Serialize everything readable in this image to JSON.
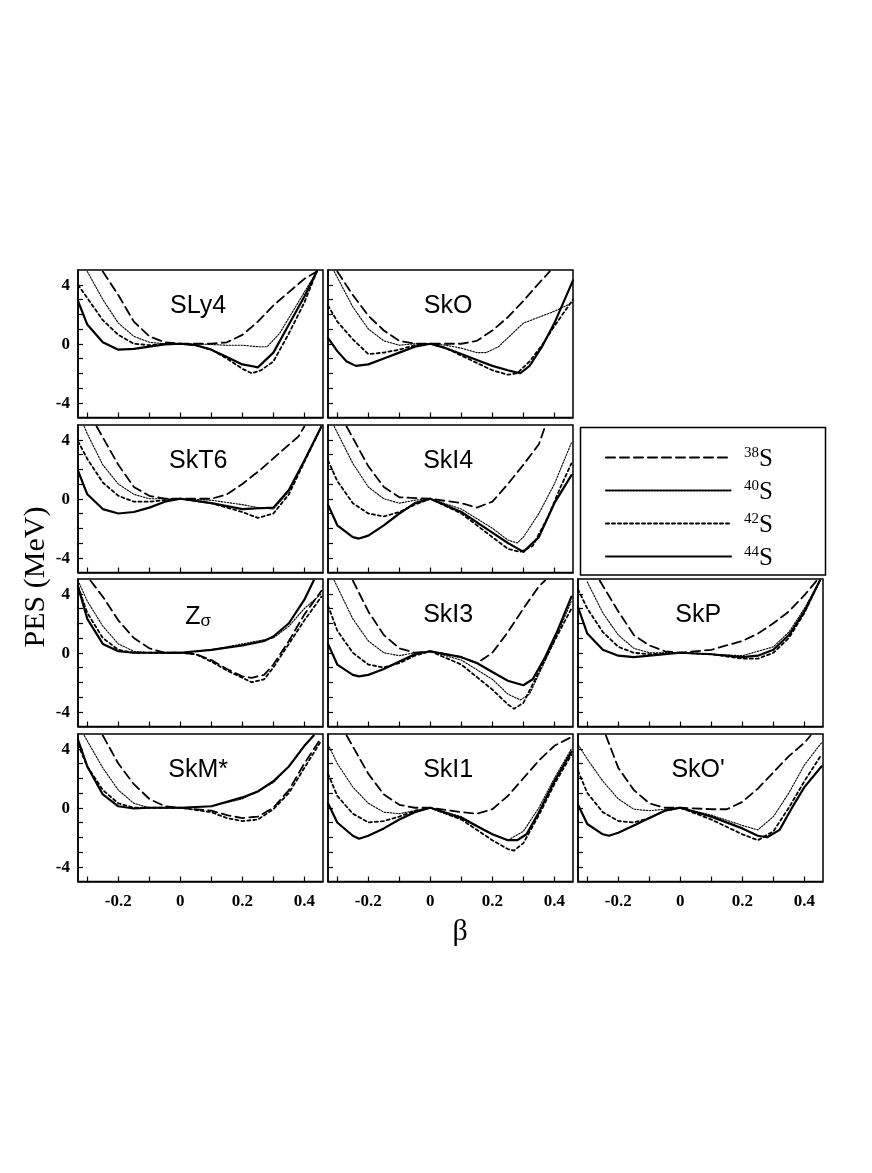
{
  "chart_data": [
    {
      "type": "line",
      "title": "SLy4",
      "xlim": [
        -0.33,
        0.46
      ],
      "ylim": [
        -5,
        5
      ],
      "tick_labels": "y",
      "xticks": [
        {
          "value": -0.3,
          "label": null
        },
        -0.2,
        {
          "value": -0.1,
          "label": null
        },
        0,
        {
          "value": 0.1,
          "label": null
        },
        0.2,
        {
          "value": 0.3,
          "label": null
        },
        0.4
      ],
      "yticks": [
        -4,
        {
          "value": -3,
          "label": null
        },
        {
          "value": -2,
          "label": null
        },
        {
          "value": -1,
          "label": null
        },
        0,
        {
          "value": 1,
          "label": null
        },
        {
          "value": 2,
          "label": null
        },
        {
          "value": 3,
          "label": null
        },
        4
      ],
      "series": [
        {
          "color": "#000000",
          "line_style": "dashed",
          "x": [
            -0.25,
            -0.2,
            -0.15,
            -0.1,
            -0.05,
            0,
            0.05,
            0.1,
            0.15,
            0.2,
            0.25,
            0.3,
            0.35,
            0.4,
            0.44
          ],
          "values": [
            4.9,
            3.3,
            1.5,
            0.5,
            0.1,
            0,
            0,
            0,
            0.1,
            0.6,
            1.5,
            2.6,
            3.5,
            4.4,
            4.9
          ]
        },
        {
          "color": "#000000",
          "line_style": "dotted",
          "x": [
            -0.3,
            -0.25,
            -0.2,
            -0.15,
            -0.1,
            -0.05,
            0,
            0.05,
            0.1,
            0.15,
            0.2,
            0.25,
            0.28,
            0.32,
            0.36,
            0.4,
            0.44
          ],
          "values": [
            4.9,
            3.0,
            1.4,
            0.5,
            0.1,
            0,
            0,
            0,
            -0.05,
            -0.1,
            -0.1,
            -0.2,
            -0.2,
            0.7,
            2.1,
            3.5,
            4.9
          ]
        },
        {
          "color": "#000000",
          "line_style": "dashed",
          "x": [
            -0.33,
            -0.3,
            -0.25,
            -0.2,
            -0.15,
            -0.1,
            -0.05,
            0,
            0.05,
            0.1,
            0.15,
            0.2,
            0.23,
            0.26,
            0.3,
            0.35,
            0.4,
            0.44
          ],
          "values": [
            4.0,
            3.1,
            1.6,
            0.6,
            0,
            -0.1,
            0,
            0,
            -0.1,
            -0.4,
            -1.0,
            -1.7,
            -2.0,
            -1.8,
            -1.2,
            0.7,
            2.8,
            4.9
          ]
        },
        {
          "color": "#000000",
          "line_style": "solid",
          "x": [
            -0.33,
            -0.3,
            -0.25,
            -0.2,
            -0.15,
            -0.1,
            -0.05,
            0,
            0.05,
            0.1,
            0.15,
            0.2,
            0.25,
            0.3,
            0.35,
            0.4,
            0.44
          ],
          "values": [
            2.9,
            1.3,
            0.1,
            -0.4,
            -0.35,
            -0.2,
            -0.05,
            0,
            -0.1,
            -0.4,
            -0.9,
            -1.4,
            -1.6,
            -0.6,
            1.3,
            3.2,
            4.9
          ]
        }
      ]
    },
    {
      "type": "line",
      "title": "SkO",
      "xlim": [
        -0.33,
        0.46
      ],
      "ylim": [
        -5,
        5
      ],
      "tick_labels": false,
      "xticks": [
        {
          "value": -0.3,
          "label": null
        },
        -0.2,
        {
          "value": -0.1,
          "label": null
        },
        0,
        {
          "value": 0.1,
          "label": null
        },
        0.2,
        {
          "value": 0.3,
          "label": null
        },
        0.4
      ],
      "yticks": [
        -4,
        {
          "value": -3,
          "label": null
        },
        {
          "value": -2,
          "label": null
        },
        {
          "value": -1,
          "label": null
        },
        0,
        {
          "value": 1,
          "label": null
        },
        {
          "value": 2,
          "label": null
        },
        {
          "value": 3,
          "label": null
        },
        4
      ],
      "series": [
        {
          "color": "#000000",
          "line_style": "dashed",
          "x": [
            -0.3,
            -0.25,
            -0.2,
            -0.15,
            -0.1,
            -0.05,
            0,
            0.05,
            0.1,
            0.15,
            0.2,
            0.25,
            0.3,
            0.35,
            0.385
          ],
          "values": [
            4.9,
            3.3,
            1.9,
            0.9,
            0.2,
            0,
            0,
            0,
            0,
            0.2,
            0.9,
            1.8,
            2.9,
            4.1,
            4.9
          ]
        },
        {
          "color": "#000000",
          "line_style": "dotted",
          "x": [
            -0.31,
            -0.25,
            -0.2,
            -0.15,
            -0.1,
            -0.05,
            0,
            0.05,
            0.1,
            0.15,
            0.18,
            0.22,
            0.26,
            0.3,
            0.35,
            0.4,
            0.46
          ],
          "values": [
            4.9,
            2.5,
            1.0,
            0.2,
            -0.1,
            0,
            0,
            -0.1,
            -0.3,
            -0.6,
            -0.6,
            -0.2,
            0.6,
            1.4,
            1.8,
            2.2,
            2.8
          ]
        },
        {
          "color": "#000000",
          "line_style": "dashed",
          "x": [
            -0.33,
            -0.3,
            -0.25,
            -0.2,
            -0.15,
            -0.1,
            -0.05,
            0,
            0.05,
            0.1,
            0.15,
            0.2,
            0.25,
            0.28,
            0.32,
            0.36,
            0.4,
            0.46
          ],
          "values": [
            2.6,
            1.5,
            0.3,
            -0.7,
            -0.6,
            -0.4,
            -0.1,
            0,
            -0.3,
            -0.8,
            -1.3,
            -1.8,
            -2.1,
            -2.0,
            -1.2,
            -0.1,
            1.2,
            3.0
          ]
        },
        {
          "color": "#000000",
          "line_style": "solid",
          "x": [
            -0.33,
            -0.3,
            -0.27,
            -0.24,
            -0.2,
            -0.15,
            -0.1,
            -0.05,
            0,
            0.05,
            0.1,
            0.15,
            0.2,
            0.25,
            0.29,
            0.32,
            0.36,
            0.4,
            0.46
          ],
          "values": [
            0.4,
            -0.5,
            -1.2,
            -1.5,
            -1.4,
            -1.0,
            -0.6,
            -0.2,
            0,
            -0.3,
            -0.7,
            -1.1,
            -1.5,
            -1.8,
            -2.0,
            -1.5,
            -0.2,
            1.4,
            4.3
          ]
        }
      ]
    },
    {
      "type": "line",
      "title": "SkT6",
      "ylabel": "PES (MeV)",
      "xlim": [
        -0.33,
        0.46
      ],
      "ylim": [
        -5,
        5
      ],
      "tick_labels": "y",
      "xticks": [
        {
          "value": -0.3,
          "label": null
        },
        -0.2,
        {
          "value": -0.1,
          "label": null
        },
        0,
        {
          "value": 0.1,
          "label": null
        },
        0.2,
        {
          "value": 0.3,
          "label": null
        },
        0.4
      ],
      "yticks": [
        -4,
        {
          "value": -3,
          "label": null
        },
        {
          "value": -2,
          "label": null
        },
        {
          "value": -1,
          "label": null
        },
        0,
        {
          "value": 1,
          "label": null
        },
        {
          "value": 2,
          "label": null
        },
        {
          "value": 3,
          "label": null
        },
        4
      ],
      "series": [
        {
          "color": "#000000",
          "line_style": "dashed",
          "x": [
            -0.27,
            -0.2,
            -0.15,
            -0.1,
            -0.05,
            0,
            0.05,
            0.1,
            0.15,
            0.2,
            0.26,
            0.33,
            0.38,
            0.4
          ],
          "values": [
            4.9,
            2.3,
            0.8,
            0.2,
            0,
            0,
            0,
            0,
            0.3,
            1.0,
            2.0,
            3.3,
            4.2,
            4.9
          ]
        },
        {
          "color": "#000000",
          "line_style": "dotted",
          "x": [
            -0.31,
            -0.3,
            -0.25,
            -0.2,
            -0.15,
            -0.1,
            0,
            0.1,
            0.2,
            0.25,
            0.3,
            0.35,
            0.4,
            0.455
          ],
          "values": [
            4.9,
            4.4,
            2.3,
            1.0,
            0.3,
            0,
            0,
            -0.1,
            -0.4,
            -0.6,
            -0.7,
            0.5,
            2.6,
            4.9
          ]
        },
        {
          "color": "#000000",
          "line_style": "dashed",
          "x": [
            -0.33,
            -0.3,
            -0.25,
            -0.2,
            -0.15,
            -0.1,
            0,
            0.1,
            0.2,
            0.25,
            0.3,
            0.35,
            0.4,
            0.455
          ],
          "values": [
            3.9,
            2.7,
            1.1,
            0.2,
            -0.2,
            -0.2,
            0,
            -0.3,
            -0.9,
            -1.3,
            -1.0,
            0.3,
            2.5,
            4.9
          ]
        },
        {
          "color": "#000000",
          "line_style": "solid",
          "x": [
            -0.33,
            -0.3,
            -0.25,
            -0.2,
            -0.15,
            -0.1,
            -0.05,
            0,
            0.1,
            0.2,
            0.3,
            0.35,
            0.4,
            0.455
          ],
          "values": [
            1.9,
            0.3,
            -0.7,
            -1.0,
            -0.9,
            -0.6,
            -0.2,
            0,
            -0.3,
            -0.7,
            -0.6,
            0.6,
            2.6,
            4.9
          ]
        }
      ]
    },
    {
      "type": "line",
      "title": "SkI4",
      "legend": "right",
      "xlim": [
        -0.33,
        0.46
      ],
      "ylim": [
        -5,
        5
      ],
      "tick_labels": false,
      "xticks": [
        {
          "value": -0.3,
          "label": null
        },
        -0.2,
        {
          "value": -0.1,
          "label": null
        },
        0,
        {
          "value": 0.1,
          "label": null
        },
        0.2,
        {
          "value": 0.3,
          "label": null
        },
        0.4
      ],
      "yticks": [
        -4,
        {
          "value": -3,
          "label": null
        },
        {
          "value": -2,
          "label": null
        },
        {
          "value": -1,
          "label": null
        },
        0,
        {
          "value": 1,
          "label": null
        },
        {
          "value": 2,
          "label": null
        },
        {
          "value": 3,
          "label": null
        },
        4
      ],
      "series": [
        {
          "name": "$^{38}$S",
          "color": "#000000",
          "line_style": "dashed",
          "x": [
            -0.27,
            -0.2,
            -0.15,
            -0.1,
            0,
            0.1,
            0.15,
            0.2,
            0.25,
            0.3,
            0.35,
            0.37
          ],
          "values": [
            4.9,
            2.2,
            0.8,
            0.1,
            0,
            -0.3,
            -0.6,
            -0.2,
            1.0,
            2.3,
            3.7,
            4.9
          ]
        },
        {
          "name": "$^{40}$S",
          "color": "#000000",
          "line_style": "dotted",
          "x": [
            -0.31,
            -0.25,
            -0.2,
            -0.15,
            -0.1,
            -0.05,
            0,
            0.1,
            0.2,
            0.25,
            0.28,
            0.3,
            0.35,
            0.4,
            0.455
          ],
          "values": [
            4.9,
            2.4,
            0.8,
            0,
            -0.3,
            -0.1,
            0,
            -0.7,
            -2.0,
            -2.8,
            -3.0,
            -2.6,
            -1.0,
            1.0,
            3.8
          ]
        },
        {
          "name": "$^{42}$S",
          "color": "#000000",
          "line_style": "dashed",
          "x": [
            -0.33,
            -0.3,
            -0.25,
            -0.2,
            -0.15,
            -0.1,
            -0.05,
            0,
            0.1,
            0.2,
            0.25,
            0.29,
            0.33,
            0.38,
            0.42,
            0.455
          ],
          "values": [
            2.6,
            1.2,
            -0.3,
            -1.0,
            -1.2,
            -0.9,
            -0.4,
            0,
            -1.0,
            -2.6,
            -3.4,
            -3.6,
            -3.2,
            -1.2,
            0.8,
            2.4
          ]
        },
        {
          "name": "$^{44}$S",
          "color": "#000000",
          "line_style": "solid",
          "x": [
            -0.33,
            -0.3,
            -0.25,
            -0.23,
            -0.2,
            -0.15,
            -0.1,
            -0.05,
            0,
            0.1,
            0.2,
            0.25,
            0.3,
            0.35,
            0.4,
            0.455
          ],
          "values": [
            -0.4,
            -1.8,
            -2.6,
            -2.7,
            -2.5,
            -1.8,
            -1.0,
            -0.3,
            0,
            -0.9,
            -2.3,
            -3.0,
            -3.6,
            -2.6,
            -0.3,
            1.6
          ]
        }
      ]
    },
    {
      "type": "line",
      "title": "Z$_{σ}$",
      "xlim": [
        -0.33,
        0.46
      ],
      "ylim": [
        -5,
        5
      ],
      "tick_labels": "y",
      "xticks": [
        {
          "value": -0.3,
          "label": null
        },
        -0.2,
        {
          "value": -0.1,
          "label": null
        },
        0,
        {
          "value": 0.1,
          "label": null
        },
        0.2,
        {
          "value": 0.3,
          "label": null
        },
        0.4
      ],
      "yticks": [
        -4,
        {
          "value": -3,
          "label": null
        },
        {
          "value": -2,
          "label": null
        },
        {
          "value": -1,
          "label": null
        },
        0,
        {
          "value": 1,
          "label": null
        },
        {
          "value": 2,
          "label": null
        },
        {
          "value": 3,
          "label": null
        },
        4
      ],
      "series": [
        {
          "color": "#000000",
          "line_style": "dashed",
          "x": [
            -0.29,
            -0.25,
            -0.2,
            -0.15,
            -0.1,
            -0.05,
            0,
            0.05,
            0.1,
            0.15,
            0.2,
            0.23,
            0.27,
            0.3,
            0.35,
            0.4,
            0.455
          ],
          "values": [
            4.9,
            3.8,
            2.2,
            1.0,
            0.3,
            0,
            0,
            -0.1,
            -0.5,
            -1.1,
            -1.6,
            -1.7,
            -1.5,
            -0.8,
            0.8,
            2.6,
            4.2
          ]
        },
        {
          "color": "#000000",
          "line_style": "dotted",
          "x": [
            -0.33,
            -0.3,
            -0.25,
            -0.2,
            -0.15,
            -0.1,
            0,
            0.1,
            0.2,
            0.3,
            0.35,
            0.4,
            0.455
          ],
          "values": [
            4.9,
            3.5,
            1.8,
            0.6,
            0.1,
            0,
            0,
            0.2,
            0.6,
            1.0,
            1.8,
            3.0,
            4.0
          ]
        },
        {
          "color": "#000000",
          "line_style": "dashed",
          "x": [
            -0.33,
            -0.3,
            -0.25,
            -0.2,
            -0.15,
            0,
            0.05,
            0.1,
            0.15,
            0.2,
            0.23,
            0.27,
            0.3,
            0.35,
            0.4,
            0.455
          ],
          "values": [
            4.5,
            2.7,
            1.0,
            0.2,
            0,
            0,
            -0.1,
            -0.6,
            -1.2,
            -1.7,
            -2.0,
            -1.8,
            -1.0,
            0.6,
            2.2,
            3.8
          ]
        },
        {
          "color": "#000000",
          "line_style": "solid",
          "x": [
            -0.33,
            -0.3,
            -0.25,
            -0.2,
            -0.15,
            -0.1,
            0,
            0.1,
            0.2,
            0.27,
            0.3,
            0.35,
            0.4,
            0.43
          ],
          "values": [
            4.5,
            2.3,
            0.6,
            0.1,
            0,
            0,
            0,
            0.2,
            0.5,
            0.8,
            1.1,
            2.0,
            3.6,
            4.9
          ]
        }
      ]
    },
    {
      "type": "line",
      "title": "SkI3",
      "xlim": [
        -0.33,
        0.46
      ],
      "ylim": [
        -5,
        5
      ],
      "tick_labels": false,
      "xticks": [
        {
          "value": -0.3,
          "label": null
        },
        -0.2,
        {
          "value": -0.1,
          "label": null
        },
        0,
        {
          "value": 0.1,
          "label": null
        },
        0.2,
        {
          "value": 0.3,
          "label": null
        },
        0.4
      ],
      "yticks": [
        -4,
        {
          "value": -3,
          "label": null
        },
        {
          "value": -2,
          "label": null
        },
        {
          "value": -1,
          "label": null
        },
        0,
        {
          "value": 1,
          "label": null
        },
        {
          "value": 2,
          "label": null
        },
        {
          "value": 3,
          "label": null
        },
        4
      ],
      "series": [
        {
          "color": "#000000",
          "line_style": "dashed",
          "x": [
            -0.25,
            -0.2,
            -0.15,
            -0.1,
            -0.05,
            0,
            0.1,
            0.15,
            0.2,
            0.25,
            0.3,
            0.35,
            0.37
          ],
          "values": [
            4.9,
            2.8,
            1.2,
            0.3,
            0,
            0.1,
            -0.3,
            -0.7,
            0,
            1.4,
            3.0,
            4.5,
            4.9
          ]
        },
        {
          "color": "#000000",
          "line_style": "dotted",
          "x": [
            -0.31,
            -0.25,
            -0.2,
            -0.15,
            -0.1,
            -0.05,
            0,
            0.1,
            0.2,
            0.25,
            0.29,
            0.32,
            0.36,
            0.4,
            0.455
          ],
          "values": [
            4.9,
            2.3,
            0.8,
            0,
            -0.2,
            0,
            0.1,
            -0.5,
            -1.8,
            -2.8,
            -3.2,
            -2.8,
            -1.0,
            0.8,
            3.5
          ]
        },
        {
          "color": "#000000",
          "line_style": "dashed",
          "x": [
            -0.33,
            -0.3,
            -0.25,
            -0.2,
            -0.15,
            -0.1,
            -0.05,
            0,
            0.1,
            0.2,
            0.25,
            0.27,
            0.3,
            0.35,
            0.4,
            0.455
          ],
          "values": [
            3.2,
            1.5,
            0,
            -0.8,
            -1.0,
            -0.7,
            -0.2,
            0.1,
            -0.8,
            -2.5,
            -3.5,
            -3.8,
            -3.4,
            -1.3,
            0.8,
            3.0
          ]
        },
        {
          "color": "#000000",
          "line_style": "solid",
          "x": [
            -0.33,
            -0.3,
            -0.25,
            -0.23,
            -0.2,
            -0.15,
            -0.1,
            -0.05,
            0,
            0.1,
            0.15,
            0.2,
            0.25,
            0.3,
            0.33,
            0.37,
            0.41,
            0.455
          ],
          "values": [
            0.6,
            -0.8,
            -1.5,
            -1.6,
            -1.5,
            -1.1,
            -0.6,
            -0.1,
            0.1,
            -0.3,
            -0.7,
            -1.3,
            -1.9,
            -2.2,
            -1.8,
            -0.3,
            1.5,
            3.8
          ]
        }
      ]
    },
    {
      "type": "line",
      "title": "SkP",
      "xlim": [
        -0.33,
        0.46
      ],
      "ylim": [
        -5,
        5
      ],
      "tick_labels": false,
      "xticks": [
        {
          "value": -0.3,
          "label": null
        },
        -0.2,
        {
          "value": -0.1,
          "label": null
        },
        0,
        {
          "value": 0.1,
          "label": null
        },
        0.2,
        {
          "value": 0.3,
          "label": null
        },
        0.4
      ],
      "yticks": [
        -4,
        {
          "value": -3,
          "label": null
        },
        {
          "value": -2,
          "label": null
        },
        {
          "value": -1,
          "label": null
        },
        0,
        {
          "value": 1,
          "label": null
        },
        {
          "value": 2,
          "label": null
        },
        {
          "value": 3,
          "label": null
        },
        4
      ],
      "series": [
        {
          "color": "#000000",
          "line_style": "dashed",
          "x": [
            -0.26,
            -0.2,
            -0.15,
            -0.1,
            -0.05,
            0,
            0.1,
            0.2,
            0.25,
            0.3,
            0.35,
            0.4,
            0.44
          ],
          "values": [
            4.9,
            2.8,
            1.2,
            0.5,
            0.1,
            0,
            0.2,
            0.8,
            1.3,
            2.0,
            2.8,
            3.9,
            4.9
          ]
        },
        {
          "color": "#000000",
          "line_style": "dotted",
          "x": [
            -0.3,
            -0.25,
            -0.2,
            -0.15,
            -0.1,
            0,
            0.1,
            0.2,
            0.3,
            0.35,
            0.4,
            0.45
          ],
          "values": [
            4.8,
            2.7,
            1.2,
            0.3,
            0,
            0,
            -0.1,
            -0.2,
            0.4,
            1.4,
            3.0,
            4.9
          ]
        },
        {
          "color": "#000000",
          "line_style": "dashed",
          "x": [
            -0.33,
            -0.3,
            -0.25,
            -0.2,
            -0.15,
            -0.1,
            0,
            0.1,
            0.2,
            0.25,
            0.3,
            0.35,
            0.4,
            0.45
          ],
          "values": [
            4.3,
            3.0,
            1.4,
            0.4,
            0,
            -0.1,
            0,
            -0.1,
            -0.4,
            -0.4,
            0,
            1.0,
            2.7,
            4.9
          ]
        },
        {
          "color": "#000000",
          "line_style": "solid",
          "x": [
            -0.33,
            -0.3,
            -0.25,
            -0.2,
            -0.15,
            -0.1,
            0,
            0.1,
            0.2,
            0.25,
            0.3,
            0.35,
            0.4,
            0.45
          ],
          "values": [
            3.1,
            1.3,
            0.2,
            -0.2,
            -0.3,
            -0.2,
            0,
            -0.1,
            -0.3,
            -0.2,
            0.2,
            1.2,
            2.8,
            4.9
          ]
        }
      ]
    },
    {
      "type": "line",
      "title": "SkM*",
      "xlim": [
        -0.33,
        0.46
      ],
      "ylim": [
        -5,
        5
      ],
      "xticks": [
        {
          "value": -0.3,
          "label": null
        },
        -0.2,
        {
          "value": -0.1,
          "label": null
        },
        0,
        {
          "value": 0.1,
          "label": null
        },
        0.2,
        {
          "value": 0.3,
          "label": null
        },
        0.4
      ],
      "yticks": [
        -4,
        {
          "value": -3,
          "label": null
        },
        {
          "value": -2,
          "label": null
        },
        {
          "value": -1,
          "label": null
        },
        0,
        {
          "value": 1,
          "label": null
        },
        {
          "value": 2,
          "label": null
        },
        {
          "value": 3,
          "label": null
        },
        4
      ],
      "series": [
        {
          "color": "#000000",
          "line_style": "dashed",
          "x": [
            -0.25,
            -0.2,
            -0.15,
            -0.1,
            -0.05,
            0,
            0.1,
            0.15,
            0.2,
            0.25,
            0.3,
            0.35,
            0.4,
            0.45
          ],
          "values": [
            4.9,
            3.0,
            1.6,
            0.6,
            0.1,
            0,
            -0.2,
            -0.5,
            -0.7,
            -0.6,
            0,
            1.2,
            3.0,
            4.6
          ]
        },
        {
          "color": "#000000",
          "line_style": "dotted",
          "x": [
            -0.31,
            -0.25,
            -0.2,
            -0.15,
            -0.1,
            0,
            0.1,
            0.2,
            0.3,
            0.35,
            0.4,
            0.43
          ],
          "values": [
            4.9,
            2.7,
            1.2,
            0.3,
            0,
            0,
            0.1,
            0.6,
            1.7,
            2.8,
            4.2,
            4.9
          ]
        },
        {
          "color": "#000000",
          "line_style": "dashed",
          "x": [
            -0.33,
            -0.3,
            -0.25,
            -0.2,
            -0.15,
            -0.1,
            0,
            0.1,
            0.15,
            0.2,
            0.25,
            0.3,
            0.35,
            0.4,
            0.45
          ],
          "values": [
            4.3,
            2.8,
            1.2,
            0.3,
            0,
            0,
            0,
            -0.3,
            -0.7,
            -0.9,
            -0.8,
            -0.1,
            1.0,
            2.7,
            4.4
          ]
        },
        {
          "color": "#000000",
          "line_style": "solid",
          "x": [
            -0.33,
            -0.3,
            -0.25,
            -0.2,
            -0.15,
            -0.1,
            0,
            0.1,
            0.2,
            0.25,
            0.3,
            0.35,
            0.4,
            0.43
          ],
          "values": [
            4.6,
            2.8,
            0.9,
            0.1,
            -0.05,
            0,
            0,
            0.1,
            0.7,
            1.1,
            1.8,
            2.8,
            4.2,
            4.9
          ]
        }
      ]
    },
    {
      "type": "line",
      "title": "SkI1",
      "xlabel": "β",
      "xlim": [
        -0.33,
        0.46
      ],
      "ylim": [
        -5,
        5
      ],
      "tick_labels": "x",
      "xticks": [
        {
          "value": -0.3,
          "label": null
        },
        -0.2,
        {
          "value": -0.1,
          "label": null
        },
        0,
        {
          "value": 0.1,
          "label": null
        },
        0.2,
        {
          "value": 0.3,
          "label": null
        },
        0.4
      ],
      "yticks": [
        -4,
        {
          "value": -3,
          "label": null
        },
        {
          "value": -2,
          "label": null
        },
        {
          "value": -1,
          "label": null
        },
        0,
        {
          "value": 1,
          "label": null
        },
        {
          "value": 2,
          "label": null
        },
        {
          "value": 3,
          "label": null
        },
        4
      ],
      "series": [
        {
          "color": "#000000",
          "line_style": "dashed",
          "x": [
            -0.27,
            -0.2,
            -0.15,
            -0.1,
            -0.05,
            0,
            0.1,
            0.15,
            0.2,
            0.25,
            0.3,
            0.35,
            0.4,
            0.455
          ],
          "values": [
            4.9,
            2.3,
            0.9,
            0.2,
            0,
            0,
            -0.3,
            -0.4,
            -0.1,
            0.8,
            2.0,
            3.2,
            4.2,
            4.8
          ]
        },
        {
          "color": "#000000",
          "line_style": "dotted",
          "x": [
            -0.33,
            -0.3,
            -0.25,
            -0.2,
            -0.15,
            -0.1,
            -0.05,
            0,
            0.1,
            0.2,
            0.25,
            0.3,
            0.35,
            0.4,
            0.455
          ],
          "values": [
            4.3,
            3.0,
            1.4,
            0.3,
            -0.3,
            -0.4,
            -0.2,
            0,
            -0.6,
            -1.8,
            -2.2,
            -1.6,
            0,
            2.0,
            4.0
          ]
        },
        {
          "color": "#000000",
          "line_style": "dashed",
          "x": [
            -0.33,
            -0.3,
            -0.25,
            -0.2,
            -0.15,
            -0.1,
            -0.05,
            0,
            0.1,
            0.2,
            0.25,
            0.27,
            0.3,
            0.35,
            0.4,
            0.455
          ],
          "values": [
            2.3,
            0.8,
            -0.4,
            -1.0,
            -0.9,
            -0.6,
            -0.2,
            0,
            -0.8,
            -2.2,
            -2.8,
            -2.9,
            -2.4,
            -0.5,
            1.6,
            3.6
          ]
        },
        {
          "color": "#000000",
          "line_style": "solid",
          "x": [
            -0.33,
            -0.3,
            -0.25,
            -0.23,
            -0.2,
            -0.15,
            -0.1,
            -0.05,
            0,
            0.1,
            0.2,
            0.25,
            0.28,
            0.31,
            0.35,
            0.4,
            0.455
          ],
          "values": [
            0.3,
            -1.0,
            -1.9,
            -2.1,
            -1.9,
            -1.4,
            -0.8,
            -0.3,
            0,
            -0.7,
            -1.8,
            -2.2,
            -2.2,
            -1.8,
            -0.3,
            1.8,
            3.8
          ]
        }
      ]
    },
    {
      "type": "line",
      "title": "SkO'",
      "xlim": [
        -0.33,
        0.46
      ],
      "ylim": [
        -5,
        5
      ],
      "tick_labels": "x",
      "xticks": [
        {
          "value": -0.3,
          "label": null
        },
        -0.2,
        {
          "value": -0.1,
          "label": null
        },
        0,
        {
          "value": 0.1,
          "label": null
        },
        0.2,
        {
          "value": 0.3,
          "label": null
        },
        0.4
      ],
      "yticks": [
        -4,
        {
          "value": -3,
          "label": null
        },
        {
          "value": -2,
          "label": null
        },
        {
          "value": -1,
          "label": null
        },
        0,
        {
          "value": 1,
          "label": null
        },
        {
          "value": 2,
          "label": null
        },
        {
          "value": 3,
          "label": null
        },
        4
      ],
      "series": [
        {
          "color": "#000000",
          "line_style": "dashed",
          "x": [
            -0.24,
            -0.2,
            -0.15,
            -0.1,
            -0.05,
            0,
            0.1,
            0.15,
            0.2,
            0.25,
            0.3,
            0.35,
            0.4,
            0.42
          ],
          "values": [
            4.9,
            2.7,
            1.2,
            0.3,
            0,
            0,
            -0.1,
            -0.1,
            0.4,
            1.3,
            2.4,
            3.5,
            4.4,
            4.9
          ]
        },
        {
          "color": "#000000",
          "line_style": "dotted",
          "x": [
            -0.33,
            -0.3,
            -0.25,
            -0.2,
            -0.15,
            -0.1,
            -0.05,
            0,
            0.1,
            0.2,
            0.25,
            0.3,
            0.35,
            0.4,
            0.455
          ],
          "values": [
            4.3,
            3.3,
            1.8,
            0.6,
            -0.1,
            -0.2,
            -0.1,
            0,
            -0.5,
            -1.2,
            -1.5,
            -0.6,
            1.0,
            2.9,
            4.4
          ]
        },
        {
          "color": "#000000",
          "line_style": "dashed",
          "x": [
            -0.33,
            -0.3,
            -0.25,
            -0.2,
            -0.15,
            -0.1,
            -0.05,
            0,
            0.1,
            0.2,
            0.25,
            0.3,
            0.35,
            0.4,
            0.455
          ],
          "values": [
            2.5,
            1.0,
            -0.3,
            -0.9,
            -1.0,
            -0.7,
            -0.2,
            0,
            -0.8,
            -1.8,
            -2.2,
            -1.6,
            0,
            1.8,
            3.6
          ]
        },
        {
          "color": "#000000",
          "line_style": "solid",
          "x": [
            -0.33,
            -0.3,
            -0.25,
            -0.23,
            -0.2,
            -0.15,
            -0.1,
            -0.05,
            0,
            0.1,
            0.2,
            0.25,
            0.28,
            0.32,
            0.36,
            0.4,
            0.455
          ],
          "values": [
            0.2,
            -1.1,
            -1.8,
            -1.9,
            -1.7,
            -1.2,
            -0.7,
            -0.2,
            0,
            -0.6,
            -1.4,
            -1.9,
            -2.0,
            -1.5,
            0,
            1.4,
            2.8
          ]
        }
      ]
    }
  ]
}
